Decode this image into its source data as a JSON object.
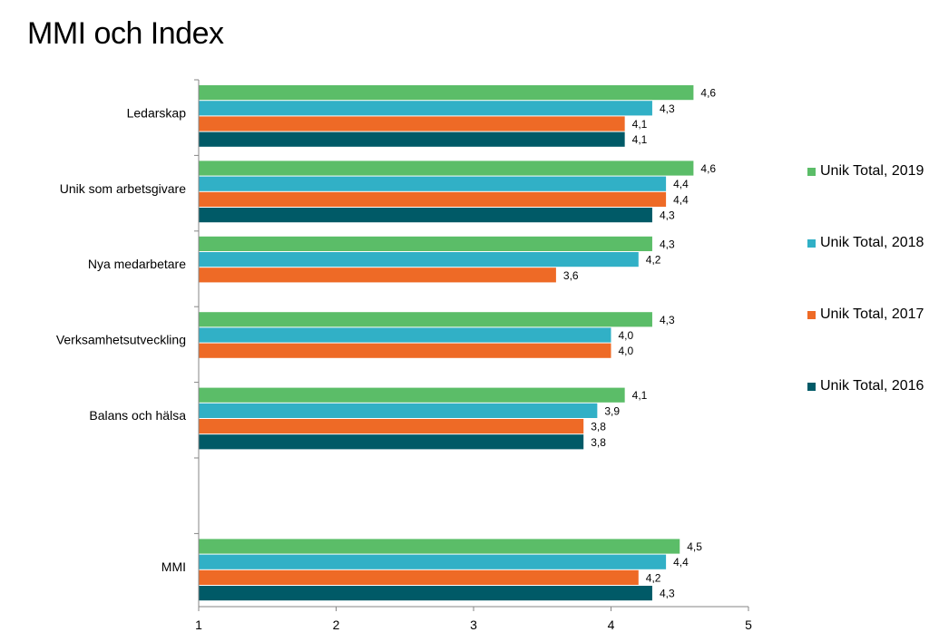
{
  "title": "MMI och Index",
  "chart_data": {
    "type": "bar",
    "orientation": "horizontal",
    "title": "MMI och Index",
    "xlim": [
      1,
      5
    ],
    "xticks": [
      "1",
      "2",
      "3",
      "4",
      "5"
    ],
    "legend_position": "right",
    "categories": [
      "Ledarskap",
      "Unik som arbetsgivare",
      "Nya medarbetare",
      "Verksamhetsutveckling",
      "Balans och hälsa",
      "",
      "MMI"
    ],
    "series": [
      {
        "name": "Unik Total, 2019",
        "color": "#5BBD68",
        "values": [
          4.6,
          4.6,
          4.3,
          4.3,
          4.1,
          null,
          4.5
        ],
        "labels": [
          "4,6",
          "4,6",
          "4,3",
          "4,3",
          "4,1",
          null,
          "4,5"
        ]
      },
      {
        "name": "Unik Total, 2018",
        "color": "#31B0C6",
        "values": [
          4.3,
          4.4,
          4.2,
          4.0,
          3.9,
          null,
          4.4
        ],
        "labels": [
          "4,3",
          "4,4",
          "4,2",
          "4,0",
          "3,9",
          null,
          "4,4"
        ]
      },
      {
        "name": "Unik Total, 2017",
        "color": "#EE6A26",
        "values": [
          4.1,
          4.4,
          3.6,
          4.0,
          3.8,
          null,
          4.2
        ],
        "labels": [
          "4,1",
          "4,4",
          "3,6",
          "4,0",
          "3,8",
          null,
          "4,2"
        ]
      },
      {
        "name": "Unik Total, 2016",
        "color": "#005A67",
        "values": [
          4.1,
          4.3,
          null,
          null,
          3.8,
          null,
          4.3
        ],
        "labels": [
          "4,1",
          "4,3",
          null,
          null,
          "3,8",
          null,
          "4,3"
        ]
      }
    ]
  }
}
